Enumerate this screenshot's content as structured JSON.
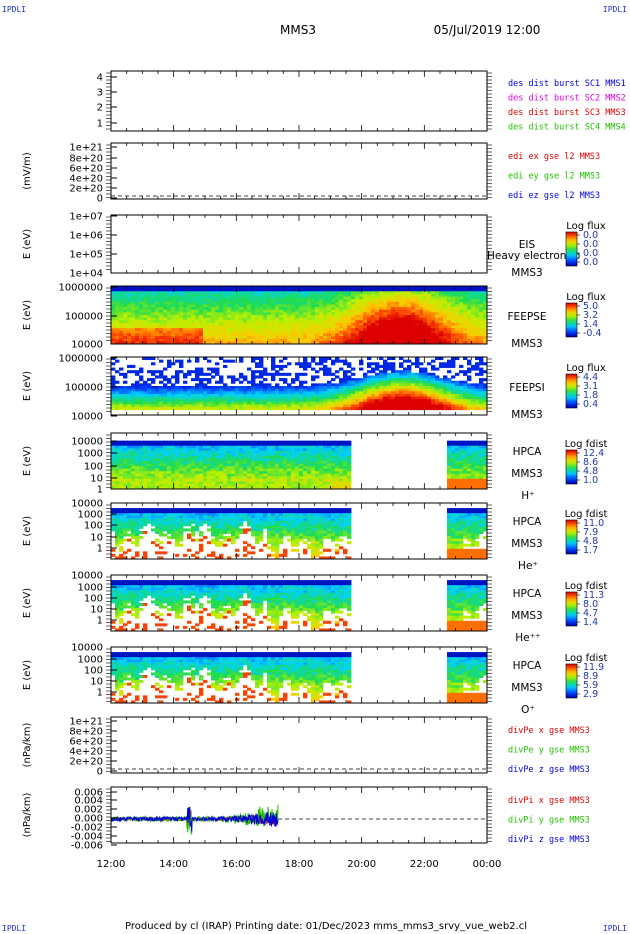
{
  "corners": [
    "IPDLI",
    "IPDLI",
    "IPDLI",
    "IPDLI"
  ],
  "header": {
    "spacecraft": "MMS3",
    "datetime": "05/Jul/2019 12:00"
  },
  "footer": "Produced by cl (IRAP)   Printing date: 01/Dec/2023   mms_mms3_srvy_vue_web2.cl",
  "colors": {
    "red": "#e00000",
    "green": "#22c000",
    "blue": "#0000e0",
    "magenta": "#e000e0"
  },
  "chart_data": {
    "type": "heatmap",
    "time_axis": {
      "range_hours": [
        12,
        24
      ],
      "tick_labels": [
        "12:00",
        "14:00",
        "16:00",
        "18:00",
        "20:00",
        "22:00",
        "00:00"
      ]
    },
    "panels": [
      {
        "id": "des-dist",
        "type": "line",
        "ylabel": "",
        "yticks": [
          "4",
          "3",
          "2",
          "1"
        ],
        "legend": [
          {
            "text": "des dist burst SC1 MMS1",
            "color": "#0000e0"
          },
          {
            "text": "des dist burst SC2 MMS2",
            "color": "#e000e0"
          },
          {
            "text": "des dist burst SC3 MMS3",
            "color": "#e00000"
          },
          {
            "text": "des dist burst SC4 MMS4",
            "color": "#22c000"
          }
        ]
      },
      {
        "id": "edi-e",
        "type": "line",
        "ylabel": "(mV/m)",
        "yticks": [
          "1e+21",
          "8e+20",
          "6e+20",
          "4e+20",
          "2e+20",
          "0"
        ],
        "legend": [
          {
            "text": "edi ex gse l2 MMS3",
            "color": "#e00000"
          },
          {
            "text": "edi ey gse l2 MMS3",
            "color": "#22c000"
          },
          {
            "text": "edi ez gse l2 MMS3",
            "color": "#0000e0"
          }
        ]
      },
      {
        "id": "eis",
        "type": "heatmap",
        "ylabel": "E (eV)",
        "yticks": [
          "1e+07",
          "1e+06",
          "1e+05",
          "1e+04"
        ],
        "side_labels": [
          "EIS",
          "MMS3"
        ],
        "overlay": "Heavy electron to",
        "colorbar": {
          "title": "Log flux",
          "values": [
            "0.0",
            "0.0",
            "0.0",
            "0.0"
          ]
        }
      },
      {
        "id": "feepse",
        "type": "heatmap",
        "ylabel": "E (eV)",
        "yticks": [
          "1000000",
          "100000",
          "10000"
        ],
        "side_labels": [
          "FEEPSE",
          "MMS3"
        ],
        "colorbar": {
          "title": "Log flux",
          "values": [
            "5.0",
            "3.2",
            "1.4",
            "-0.4"
          ]
        }
      },
      {
        "id": "feepsi",
        "type": "heatmap",
        "ylabel": "E (eV)",
        "yticks": [
          "1000000",
          "100000",
          "10000"
        ],
        "side_labels": [
          "FEEPSI",
          "MMS3"
        ],
        "colorbar": {
          "title": "Log flux",
          "values": [
            "4.4",
            "3.1",
            "1.8",
            "0.4"
          ]
        }
      },
      {
        "id": "hpca-h",
        "type": "heatmap",
        "ylabel": "E (eV)",
        "yticks": [
          "10000",
          "1000",
          "100",
          "10",
          "1"
        ],
        "side_labels": [
          "HPCA",
          "MMS3",
          "H⁺"
        ],
        "data_gap_hours": [
          19.67,
          22.67
        ],
        "colorbar": {
          "title": "Log fdist",
          "values": [
            "12.4",
            "8.6",
            "4.8",
            "1.0"
          ]
        }
      },
      {
        "id": "hpca-he",
        "type": "heatmap",
        "ylabel": "E (eV)",
        "yticks": [
          "10000",
          "1000",
          "100",
          "10",
          "1"
        ],
        "side_labels": [
          "HPCA",
          "MMS3",
          "He⁺"
        ],
        "data_gap_hours": [
          19.67,
          22.67
        ],
        "colorbar": {
          "title": "Log fdist",
          "values": [
            "11.0",
            "7.9",
            "4.8",
            "1.7"
          ]
        }
      },
      {
        "id": "hpca-hepp",
        "type": "heatmap",
        "ylabel": "E (eV)",
        "yticks": [
          "10000",
          "1000",
          "100",
          "10",
          "1"
        ],
        "side_labels": [
          "HPCA",
          "MMS3",
          "He⁺⁺"
        ],
        "data_gap_hours": [
          19.67,
          22.67
        ],
        "colorbar": {
          "title": "Log fdist",
          "values": [
            "11.3",
            "8.0",
            "4.7",
            "1.4"
          ]
        }
      },
      {
        "id": "hpca-o",
        "type": "heatmap",
        "ylabel": "E (eV)",
        "yticks": [
          "10000",
          "1000",
          "100",
          "10",
          "1"
        ],
        "side_labels": [
          "HPCA",
          "MMS3",
          "O⁺"
        ],
        "data_gap_hours": [
          19.67,
          22.67
        ],
        "colorbar": {
          "title": "Log fdist",
          "values": [
            "11.9",
            "8.9",
            "5.9",
            "2.9"
          ]
        }
      },
      {
        "id": "divpe",
        "type": "line",
        "ylabel": "(nPa/km)",
        "yticks": [
          "1e+21",
          "8e+20",
          "6e+20",
          "4e+20",
          "2e+20",
          "0"
        ],
        "legend": [
          {
            "text": "divPe x gse MMS3",
            "color": "#e00000"
          },
          {
            "text": "divPe y gse MMS3",
            "color": "#22c000"
          },
          {
            "text": "divPe z gse MMS3",
            "color": "#0000e0"
          }
        ]
      },
      {
        "id": "divpi",
        "type": "line",
        "ylabel": "(nPa/km)",
        "yticks": [
          "0.006",
          "0.004",
          "0.002",
          "0.000",
          "-0.002",
          "-0.004",
          "-0.006"
        ],
        "ylim": [
          -0.007,
          0.007
        ],
        "data_end_hours": 17.33,
        "legend": [
          {
            "text": "divPi x gse MMS3",
            "color": "#e00000"
          },
          {
            "text": "divPi y gse MMS3",
            "color": "#22c000"
          },
          {
            "text": "divPi z gse MMS3",
            "color": "#0000e0"
          }
        ]
      }
    ]
  }
}
